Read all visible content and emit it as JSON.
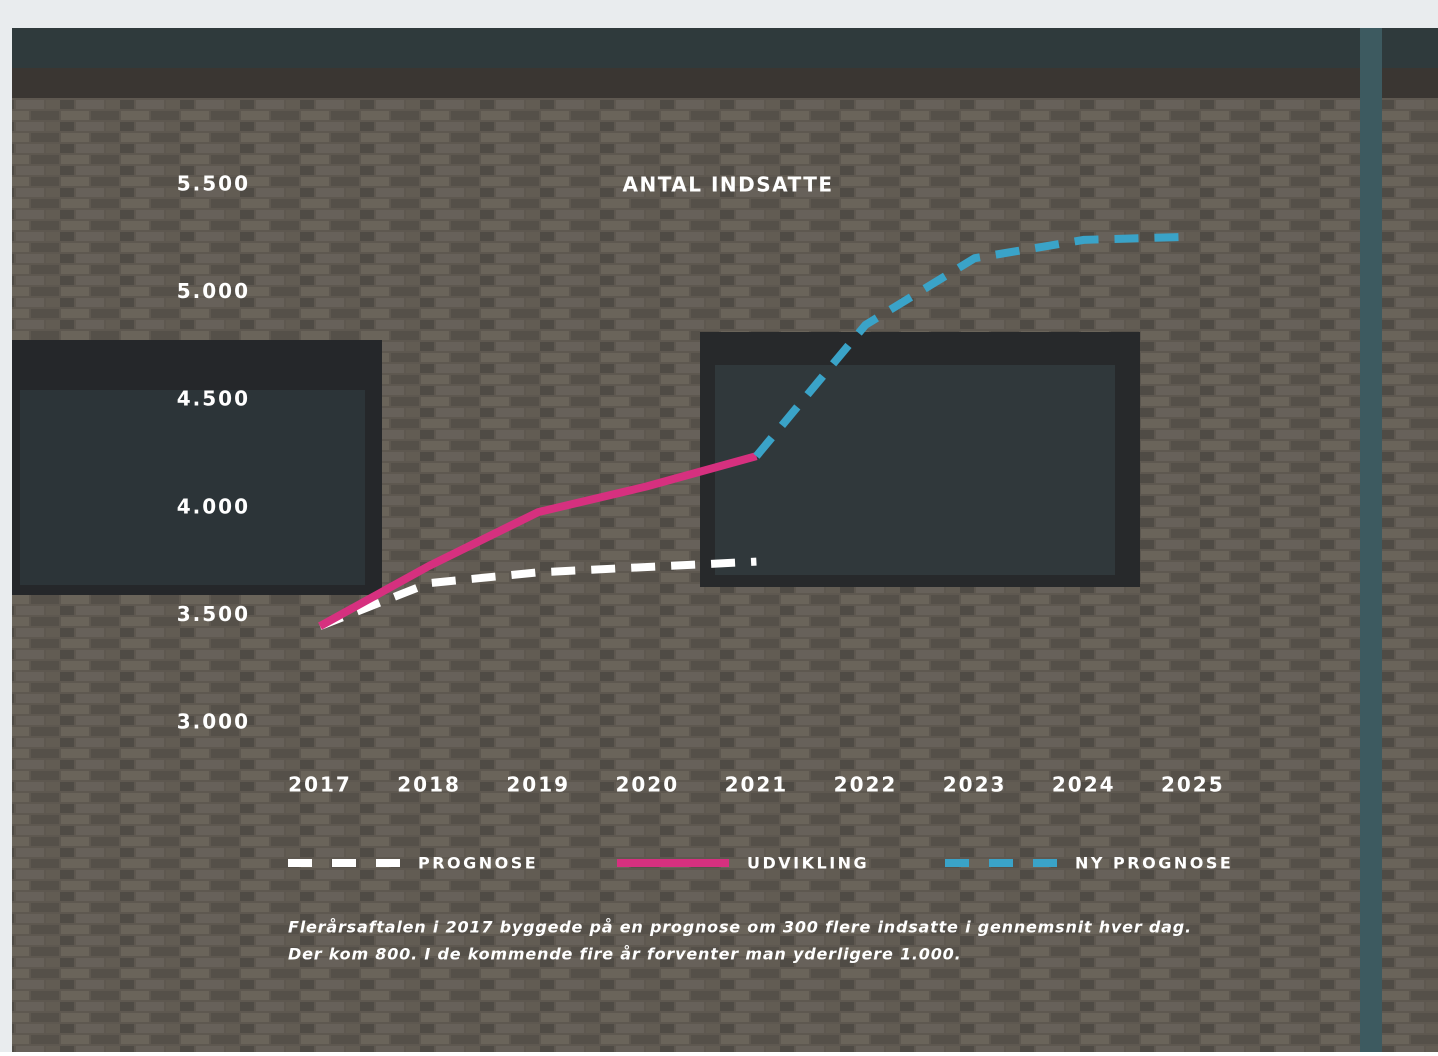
{
  "chart_data": {
    "type": "line",
    "title": "ANTAL INDSATTE",
    "categories": [
      "2017",
      "2018",
      "2019",
      "2020",
      "2021",
      "2022",
      "2023",
      "2024",
      "2025"
    ],
    "series": [
      {
        "name": "PROGNOSE",
        "color": "#ffffff",
        "dash": true,
        "values": [
          3450,
          3650,
          3700,
          3725,
          3750,
          null,
          null,
          null,
          null
        ]
      },
      {
        "name": "UDVIKLING",
        "color": "#d6307f",
        "dash": false,
        "values": [
          3450,
          3730,
          3980,
          4100,
          4240,
          null,
          null,
          null,
          null
        ]
      },
      {
        "name": "NY PROGNOSE",
        "color": "#3aa3c8",
        "dash": true,
        "values": [
          null,
          null,
          null,
          null,
          4240,
          4850,
          5160,
          5245,
          5260
        ]
      }
    ],
    "ylim": [
      3000,
      5500
    ],
    "yticks": [
      {
        "value": 3000,
        "label": "3.000"
      },
      {
        "value": 3500,
        "label": "3.500"
      },
      {
        "value": 4000,
        "label": "4.000"
      },
      {
        "value": 4500,
        "label": "4.500"
      },
      {
        "value": 5000,
        "label": "5.000"
      },
      {
        "value": 5500,
        "label": "5.500"
      }
    ],
    "grid": false,
    "caption": [
      "Flerårsaftalen i 2017 byggede på en prognose om 300 flere indsatte i gennemsnit hver dag.",
      "Der kom 800. I de kommende fire år forventer man yderligere 1.000."
    ]
  }
}
